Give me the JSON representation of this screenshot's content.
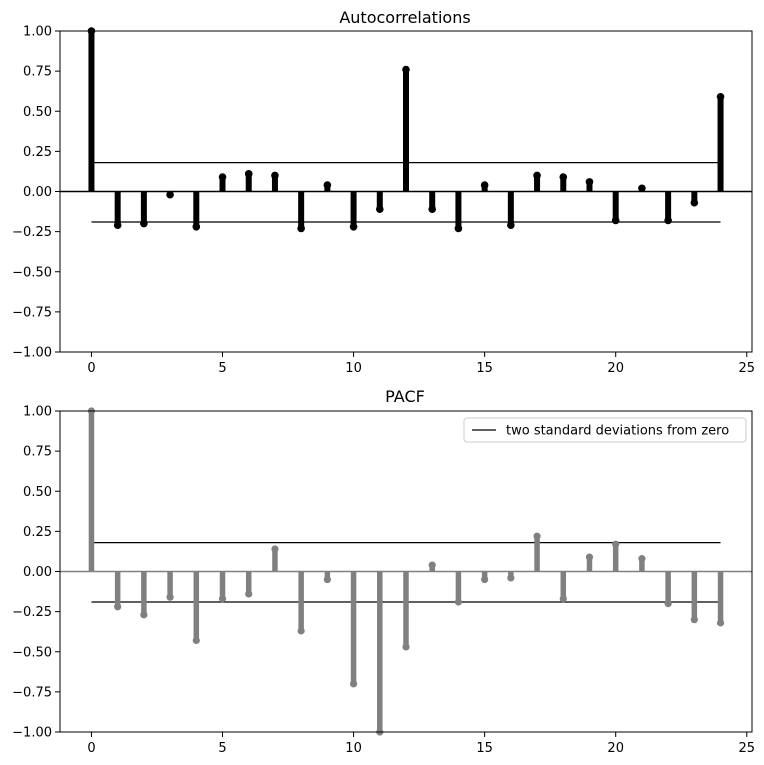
{
  "chart_data": [
    {
      "type": "stem",
      "title": "Autocorrelations",
      "xlabel": "",
      "ylabel": "",
      "xlim": [
        -1.2,
        25.2
      ],
      "ylim": [
        -1.0,
        1.0
      ],
      "xticks": [
        0,
        5,
        10,
        15,
        20,
        25
      ],
      "yticks": [
        "1.00",
        "0.75",
        "0.50",
        "0.25",
        "0.00",
        "−0.25",
        "−0.50",
        "−0.75",
        "−1.00"
      ],
      "ytick_values": [
        1.0,
        0.75,
        0.5,
        0.25,
        0.0,
        -0.25,
        -0.5,
        -0.75,
        -1.0
      ],
      "color": "#000000",
      "lags": [
        0,
        1,
        2,
        3,
        4,
        5,
        6,
        7,
        8,
        9,
        10,
        11,
        12,
        13,
        14,
        15,
        16,
        17,
        18,
        19,
        20,
        21,
        22,
        23,
        24
      ],
      "values": [
        1.0,
        -0.21,
        -0.2,
        -0.02,
        -0.22,
        0.09,
        0.11,
        0.1,
        -0.23,
        0.04,
        -0.22,
        -0.11,
        0.76,
        -0.11,
        -0.23,
        0.04,
        -0.21,
        0.1,
        0.09,
        0.06,
        -0.18,
        0.02,
        -0.18,
        -0.07,
        0.59
      ],
      "bands": [
        0.18,
        -0.19
      ],
      "band_x": [
        0,
        24
      ],
      "band_color": "#000000"
    },
    {
      "type": "stem",
      "title": "PACF",
      "xlabel": "",
      "ylabel": "",
      "xlim": [
        -1.2,
        25.2
      ],
      "ylim": [
        -1.0,
        1.0
      ],
      "xticks": [
        0,
        5,
        10,
        15,
        20,
        25
      ],
      "yticks": [
        "1.00",
        "0.75",
        "0.50",
        "0.25",
        "0.00",
        "−0.25",
        "−0.50",
        "−0.75",
        "−1.00"
      ],
      "ytick_values": [
        1.0,
        0.75,
        0.5,
        0.25,
        0.0,
        -0.25,
        -0.5,
        -0.75,
        -1.0
      ],
      "color": "#808080",
      "lags": [
        0,
        1,
        2,
        3,
        4,
        5,
        6,
        7,
        8,
        9,
        10,
        11,
        12,
        13,
        14,
        15,
        16,
        17,
        18,
        19,
        20,
        21,
        22,
        23,
        24
      ],
      "values": [
        1.0,
        -0.22,
        -0.27,
        -0.16,
        -0.43,
        -0.17,
        -0.14,
        0.14,
        -0.37,
        -0.05,
        -0.7,
        -1.0,
        -0.47,
        0.04,
        -0.19,
        -0.05,
        -0.04,
        0.22,
        -0.17,
        0.09,
        0.17,
        0.08,
        -0.2,
        -0.3,
        -0.32
      ],
      "bands": [
        0.18,
        -0.19
      ],
      "band_x": [
        0,
        24
      ],
      "band_color": "#000000",
      "legend": {
        "label": "two standard deviations from zero",
        "location": "top-right"
      }
    }
  ]
}
